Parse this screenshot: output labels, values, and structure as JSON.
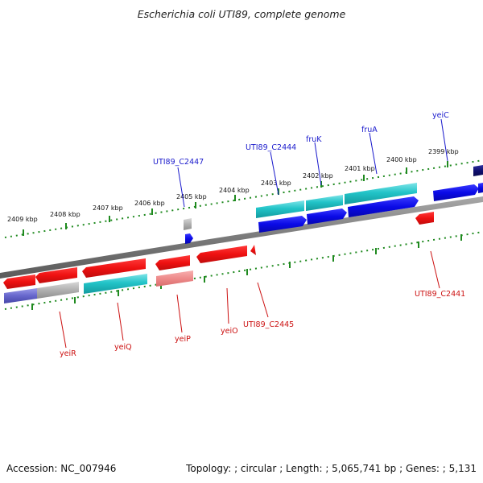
{
  "title": "Escherichia coli UTI89, complete genome",
  "footer": {
    "accession_prefix": "Accession:",
    "accession": "NC_007946",
    "topology_prefix": "Topology:",
    "topology": "circular",
    "length_prefix": "Length:",
    "length": "5,065,741 bp",
    "genes_prefix": "Genes:",
    "genes": "5,131"
  },
  "scale_labels": [
    "2409 kbp",
    "2408 kbp",
    "2407 kbp",
    "2406 kbp",
    "2405 kbp",
    "2404 kbp",
    "2403 kbp",
    "2402 kbp",
    "2401 kbp",
    "2400 kbp",
    "2399 kbp"
  ],
  "forward_gene_labels": [
    "UTI89_C2447",
    "UTI89_C2444",
    "fruK",
    "fruA",
    "yeiC"
  ],
  "reverse_gene_labels": [
    "yeiR",
    "yeiQ",
    "yeiP",
    "yeiO",
    "UTI89_C2445",
    "UTI89_C2441"
  ],
  "colors": {
    "forward_label": "#1a1acc",
    "reverse_label": "#cc1111",
    "forward_gene": "#1010e0",
    "reverse_gene": "#ee1111",
    "cds_cyan": "#22c4c8",
    "backbone": "#808080",
    "tick": "#1f8a1f",
    "pseudo": "#a8a8a8"
  }
}
